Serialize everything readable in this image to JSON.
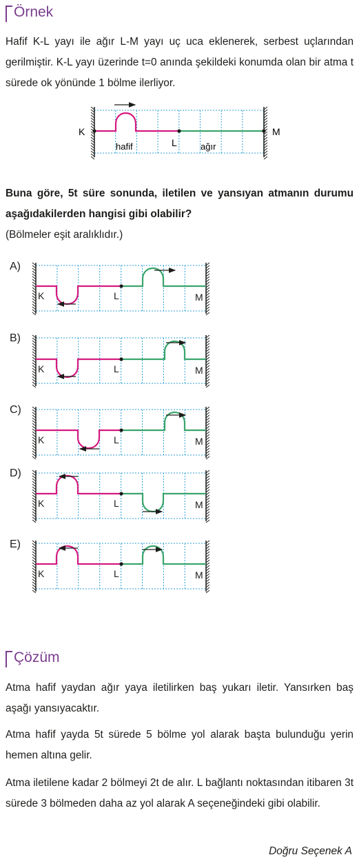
{
  "example": {
    "heading": "Örnek",
    "text": "Hafif K-L yayı ile ağır L-M yayı uç uca eklenerek, serbest uçlarından gerilmiştir. K-L yayı üzerinde t=0 anında şekildeki konumda olan bir atma t sürede ok yönünde 1 bölme ilerliyor.",
    "figure": {
      "left_end": "K",
      "junction": "L",
      "right_end": "M",
      "light_label": "hafif",
      "heavy_label": "ağır"
    }
  },
  "question": {
    "text": "Buna göre, 5t süre sonunda, iletilen ve yansıyan atmanın durumu aşağıdakilerden hangisi gibi olabilir?",
    "note": "(Bölmeler eşit aralıklıdır.)"
  },
  "options": [
    {
      "label": "A)",
      "k": "K",
      "l": "L",
      "m": "M"
    },
    {
      "label": "B)",
      "k": "K",
      "l": "L",
      "m": "M"
    },
    {
      "label": "C)",
      "k": "K",
      "l": "L",
      "m": "M"
    },
    {
      "label": "D)",
      "k": "K",
      "l": "L",
      "m": "M"
    },
    {
      "label": "E)",
      "k": "K",
      "l": "L",
      "m": "M"
    }
  ],
  "solution": {
    "heading": "Çözüm",
    "p1": "Atma hafif yaydan ağır yaya iletilirken baş yukarı iletir. Yansırken baş aşağı yansıyacaktır.",
    "p2": "Atma hafif yayda 5t sürede 5 bölme yol alarak başta bulunduğu yerin hemen altına gelir.",
    "p3": "Atma iletilene kadar 2 bölmeyi 2t de alır. L bağlantı noktasından itibaren 3t sürede 3 bölmeden daha az yol alarak A seçeneğindeki gibi olabilir.",
    "answer": "Doğru Seçenek A"
  },
  "colors": {
    "light_spring": "#d6197f",
    "heavy_spring": "#3aa56b",
    "grid": "#2a9fd6",
    "heading": "#7a3d8f"
  }
}
